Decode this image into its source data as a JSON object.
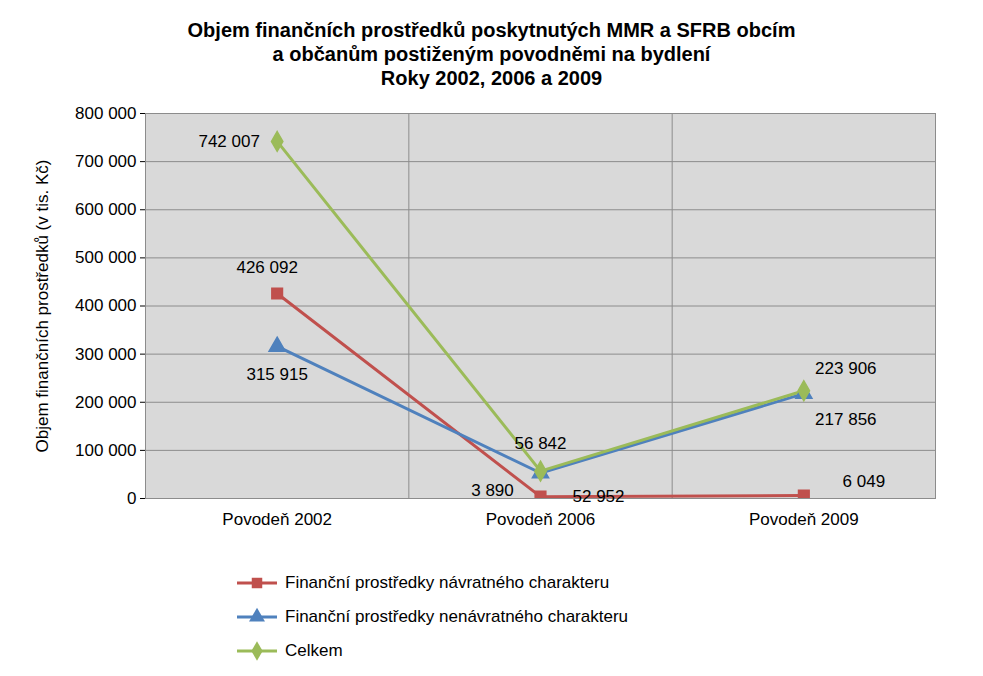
{
  "chart_data": {
    "type": "line",
    "title": "Objem finančních prostředků poskytnutých MMR a SFRB obcím\na občanům postiženým povodněmi na bydlení\nRoky 2002, 2006 a 2009",
    "y_label": "Objem finančních prostředků (v tis. Kč)",
    "categories": [
      "Povodeň 2002",
      "Povodeň 2006",
      "Povodeň 2009"
    ],
    "series": [
      {
        "name": "Finanční prostředky návratného charakteru",
        "color": "#C0504D",
        "marker": "square",
        "values": [
          426092,
          3890,
          6049
        ],
        "value_labels": [
          "426 092",
          "3 890",
          "6 049"
        ]
      },
      {
        "name": "Finanční prostředky nenávratného charakteru",
        "color": "#4F81BD",
        "marker": "triangle",
        "values": [
          315915,
          52952,
          217856
        ],
        "value_labels": [
          "315 915",
          "52 952",
          "217 856"
        ]
      },
      {
        "name": "Celkem",
        "color": "#9BBB59",
        "marker": "diamond",
        "values": [
          742007,
          56842,
          223906
        ],
        "value_labels": [
          "742 007",
          "56 842",
          "223 906"
        ]
      }
    ],
    "ylim": [
      0,
      800000
    ],
    "yticks": [
      0,
      {
        "value": 100000,
        "label": "100 000"
      },
      {
        "value": 200000,
        "label": "200 000"
      },
      {
        "value": 300000,
        "label": "300 000"
      },
      {
        "value": 400000,
        "label": "400 000"
      },
      {
        "value": 500000,
        "label": "500 000"
      },
      {
        "value": 600000,
        "label": "600 000"
      },
      {
        "value": 700000,
        "label": "700 000"
      },
      {
        "value": 800000,
        "label": "800 000"
      }
    ],
    "grid": true,
    "data_labels": true,
    "legend": "bottom"
  }
}
